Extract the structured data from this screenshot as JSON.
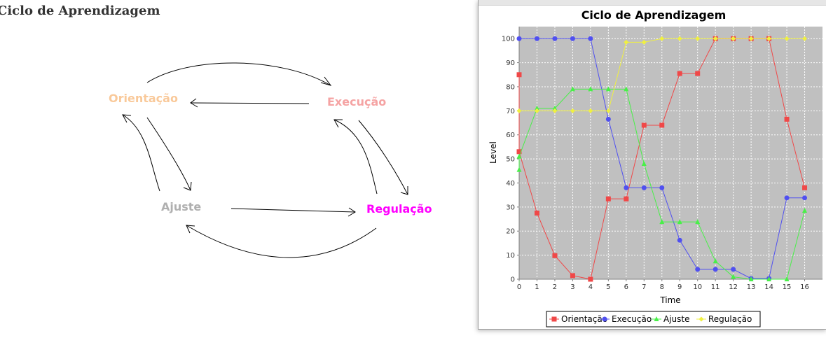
{
  "page": {
    "title": "Ciclo de Aprendizagem"
  },
  "diagram": {
    "nodes": [
      {
        "id": "orientacao",
        "label": "Orientação",
        "color": "#f9c99a"
      },
      {
        "id": "execucao",
        "label": "Execução",
        "color": "#f5a3a3"
      },
      {
        "id": "ajuste",
        "label": "Ajuste",
        "color": "#b0b0b0"
      },
      {
        "id": "regulacao",
        "label": "Regulação",
        "color": "#ff00ff"
      }
    ],
    "edges": [
      {
        "from": "orientacao",
        "to": "execucao"
      },
      {
        "from": "execucao",
        "to": "orientacao"
      },
      {
        "from": "orientacao",
        "to": "ajuste"
      },
      {
        "from": "ajuste",
        "to": "orientacao"
      },
      {
        "from": "execucao",
        "to": "regulacao"
      },
      {
        "from": "regulacao",
        "to": "execucao"
      },
      {
        "from": "ajuste",
        "to": "regulacao"
      },
      {
        "from": "regulacao",
        "to": "ajuste"
      }
    ]
  },
  "chart_data": {
    "type": "line",
    "title": "Ciclo de Aprendizagem",
    "xlabel": "Time",
    "ylabel": "Level",
    "xlim": [
      0,
      17
    ],
    "ylim": [
      0,
      105
    ],
    "xticks": [
      0,
      1,
      2,
      3,
      4,
      5,
      6,
      7,
      8,
      9,
      10,
      11,
      12,
      13,
      14,
      15,
      16
    ],
    "yticks": [
      0,
      10,
      20,
      30,
      40,
      50,
      60,
      70,
      80,
      90,
      100
    ],
    "grid": true,
    "legend_position": "bottom",
    "plot_background": "#c0c0c0",
    "series": [
      {
        "name": "Orientação",
        "color": "#f04848",
        "marker": "square",
        "points": [
          [
            0,
            85
          ],
          [
            0,
            53
          ],
          [
            1,
            27.5
          ],
          [
            2,
            9.8
          ],
          [
            3,
            1.5
          ],
          [
            4,
            0
          ],
          [
            5,
            33.4
          ],
          [
            6,
            33.4
          ],
          [
            7,
            64
          ],
          [
            8,
            64
          ],
          [
            9,
            85.5
          ],
          [
            10,
            85.5
          ],
          [
            11,
            100
          ],
          [
            12,
            100
          ],
          [
            13,
            100
          ],
          [
            14,
            100
          ],
          [
            15,
            66.5
          ],
          [
            16,
            38
          ]
        ]
      },
      {
        "name": "Execução",
        "color": "#5050f0",
        "marker": "circle",
        "points": [
          [
            0,
            100
          ],
          [
            1,
            100
          ],
          [
            2,
            100
          ],
          [
            3,
            100
          ],
          [
            4,
            100
          ],
          [
            5,
            66.5
          ],
          [
            6,
            38
          ],
          [
            7,
            38
          ],
          [
            8,
            38
          ],
          [
            9,
            16.2
          ],
          [
            10,
            4.1
          ],
          [
            11,
            4.1
          ],
          [
            12,
            4.1
          ],
          [
            13,
            0.3
          ],
          [
            14,
            0.3
          ],
          [
            15,
            33.8
          ],
          [
            16,
            33.8
          ]
        ]
      },
      {
        "name": "Ajuste",
        "color": "#48f048",
        "marker": "triangle",
        "points": [
          [
            0,
            45.5
          ],
          [
            0,
            51
          ],
          [
            1,
            71
          ],
          [
            2,
            71
          ],
          [
            3,
            79
          ],
          [
            4,
            79
          ],
          [
            5,
            79
          ],
          [
            6,
            79
          ],
          [
            7,
            48
          ],
          [
            8,
            23.8
          ],
          [
            9,
            23.8
          ],
          [
            10,
            23.8
          ],
          [
            11,
            7.5
          ],
          [
            12,
            1
          ],
          [
            13,
            0
          ],
          [
            14,
            0
          ],
          [
            15,
            0
          ],
          [
            16,
            28.5
          ]
        ]
      },
      {
        "name": "Regulação",
        "color": "#f0f040",
        "marker": "diamond",
        "points": [
          [
            0,
            70
          ],
          [
            1,
            70
          ],
          [
            2,
            70
          ],
          [
            3,
            70
          ],
          [
            4,
            70
          ],
          [
            5,
            70
          ],
          [
            6,
            98.5
          ],
          [
            7,
            98.5
          ],
          [
            8,
            100
          ],
          [
            9,
            100
          ],
          [
            10,
            100
          ],
          [
            11,
            100
          ],
          [
            12,
            100
          ],
          [
            13,
            100
          ],
          [
            14,
            100
          ],
          [
            15,
            100
          ],
          [
            16,
            100
          ]
        ]
      }
    ]
  }
}
